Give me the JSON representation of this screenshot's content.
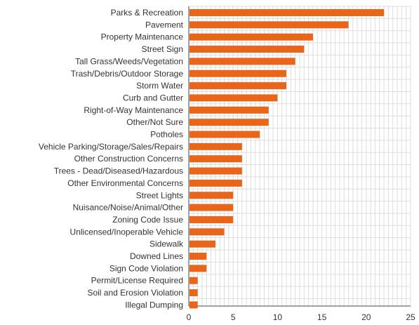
{
  "chart_data": {
    "type": "bar",
    "orientation": "horizontal",
    "categories": [
      "Parks & Recreation",
      "Pavement",
      "Property Maintenance",
      "Street Sign",
      "Tall Grass/Weeds/Vegetation",
      "Trash/Debris/Outdoor Storage",
      "Storm Water",
      "Curb and Gutter",
      "Right-of-Way Maintenance",
      "Other/Not Sure",
      "Potholes",
      "Vehicle Parking/Storage/Sales/Repairs",
      "Other Construction Concerns",
      "Trees - Dead/Diseased/Hazardous",
      "Other Environmental Concerns",
      "Street Lights",
      "Nuisance/Noise/Animal/Other",
      "Zoning Code Issue",
      "Unlicensed/Inoperable Vehicle",
      "Sidewalk",
      "Downed Lines",
      "Sign Code Violation",
      "Permit/License Required",
      "Soil and Erosion Violation",
      "Illegal Dumping"
    ],
    "values": [
      22,
      18,
      14,
      13,
      12,
      11,
      11,
      10,
      9,
      9,
      8,
      6,
      6,
      6,
      6,
      5,
      5,
      5,
      4,
      3,
      2,
      2,
      1,
      1,
      1
    ],
    "xlim": [
      0,
      25
    ],
    "xticks": [
      "0",
      "5",
      "10",
      "15",
      "20",
      "25"
    ],
    "grid": true,
    "legend": "none",
    "title": "",
    "xlabel": "",
    "ylabel": "",
    "colors": {
      "bar": "#e8651a",
      "grid": "#dddddd",
      "axis": "#444444"
    }
  }
}
